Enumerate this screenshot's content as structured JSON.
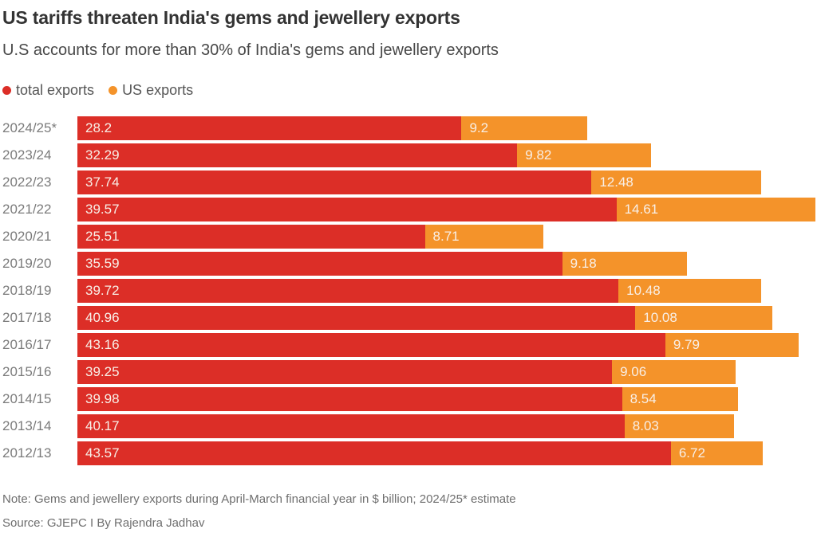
{
  "header": {
    "title": "US tariffs threaten India's gems and jewellery exports",
    "subtitle": "U.S accounts for more than 30% of India's gems and jewellery exports"
  },
  "legend": {
    "items": [
      {
        "label": "total exports",
        "color": "#dc2e27"
      },
      {
        "label": "US exports",
        "color": "#f4932a"
      }
    ]
  },
  "colors": {
    "total_exports": "#dc2e27",
    "us_exports": "#f4932a",
    "title_text": "#333333",
    "category_label": "#7b7b7b",
    "value_label": "#f8efe7",
    "footer_text": "#6e6e6e",
    "background": "#ffffff"
  },
  "chart_data": {
    "type": "bar",
    "orientation": "horizontal",
    "stacked": true,
    "title": "US tariffs threaten India's gems and jewellery exports",
    "subtitle": "U.S accounts for more than 30% of India's gems and jewellery exports",
    "xlabel": "",
    "ylabel": "",
    "unit": "$ billion",
    "xlim": [
      0,
      54.18
    ],
    "grid": false,
    "legend_position": "top-left",
    "value_labels": "inside-left",
    "categories": [
      "2024/25*",
      "2023/24",
      "2022/23",
      "2021/22",
      "2020/21",
      "2019/20",
      "2018/19",
      "2017/18",
      "2016/17",
      "2015/16",
      "2014/15",
      "2013/14",
      "2012/13"
    ],
    "series": [
      {
        "name": "total exports",
        "color": "#dc2e27",
        "values": [
          28.2,
          32.29,
          37.74,
          39.57,
          25.51,
          35.59,
          39.72,
          40.96,
          43.16,
          39.25,
          39.98,
          40.17,
          43.57
        ],
        "labels": [
          "28.2",
          "32.29",
          "37.74",
          "39.57",
          "25.51",
          "35.59",
          "39.72",
          "40.96",
          "43.16",
          "39.25",
          "39.98",
          "40.17",
          "43.57"
        ]
      },
      {
        "name": "US exports",
        "color": "#f4932a",
        "values": [
          9.2,
          9.82,
          12.48,
          14.61,
          8.71,
          9.18,
          10.48,
          10.08,
          9.79,
          9.06,
          8.54,
          8.03,
          6.72
        ],
        "labels": [
          "9.2",
          "9.82",
          "12.48",
          "14.61",
          "8.71",
          "9.18",
          "10.48",
          "10.08",
          "9.79",
          "9.06",
          "8.54",
          "8.03",
          "6.72"
        ]
      }
    ]
  },
  "footer": {
    "note": "Note: Gems and jewellery exports during April-March financial year in $ billion; 2024/25* estimate",
    "source": "Source: GJEPC I By Rajendra Jadhav"
  }
}
